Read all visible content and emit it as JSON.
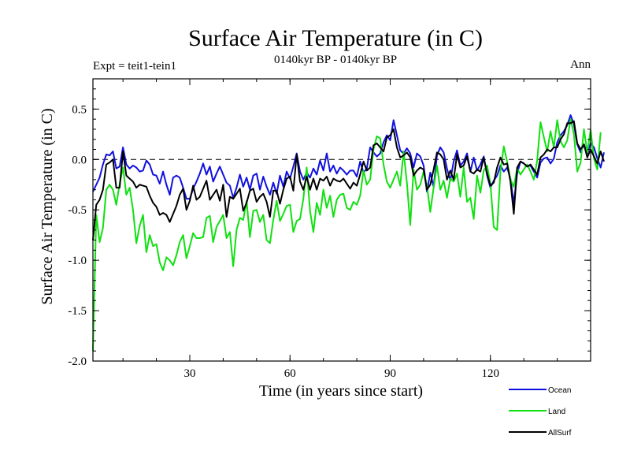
{
  "chart_data": {
    "type": "line",
    "title": "Surface Air Temperature (in C)",
    "subtitle": "0140kyr BP - 0140kyr BP",
    "left_label": "Expt = teit1-tein1",
    "right_label": "Ann",
    "xlabel": "Time (in years since start)",
    "ylabel": "Surface Air Temperature (in C)",
    "xlim": [
      1,
      150
    ],
    "ylim": [
      -2.0,
      0.8
    ],
    "xticks": [
      30,
      60,
      90,
      120
    ],
    "xtick_labels": [
      "30",
      "60",
      "90",
      "120"
    ],
    "yticks": [
      -2.0,
      -1.5,
      -1.0,
      -0.5,
      0.0,
      0.5
    ],
    "ytick_labels": [
      "-2.0",
      "-1.5",
      "-1.0",
      "-0.5",
      "0.0",
      "0.5"
    ],
    "reference_line": 0.0,
    "legend": "lower-right",
    "series": [
      {
        "name": "Ocean",
        "color": "#1010e0",
        "values": [
          -0.32,
          -0.25,
          -0.18,
          -0.05,
          0.05,
          0.04,
          0.08,
          -0.09,
          -0.07,
          0.12,
          -0.05,
          -0.09,
          -0.06,
          -0.08,
          -0.12,
          -0.11,
          -0.01,
          -0.05,
          -0.15,
          -0.16,
          -0.24,
          -0.12,
          -0.25,
          -0.35,
          -0.18,
          -0.16,
          -0.18,
          -0.28,
          -0.39,
          -0.39,
          -0.29,
          -0.22,
          -0.14,
          -0.04,
          -0.15,
          -0.07,
          -0.22,
          -0.14,
          -0.07,
          -0.15,
          -0.23,
          -0.26,
          -0.38,
          -0.28,
          -0.15,
          -0.27,
          -0.18,
          -0.3,
          -0.16,
          -0.14,
          -0.3,
          -0.17,
          -0.27,
          -0.35,
          -0.23,
          -0.34,
          -0.16,
          -0.27,
          -0.12,
          -0.19,
          -0.07,
          0.06,
          -0.12,
          -0.2,
          -0.13,
          -0.18,
          -0.09,
          -0.15,
          -0.01,
          -0.11,
          0.06,
          -0.12,
          -0.06,
          -0.14,
          -0.08,
          -0.11,
          -0.15,
          -0.11,
          -0.11,
          -0.17,
          -0.02,
          -0.13,
          -0.09,
          0.12,
          0.07,
          0.03,
          0.06,
          0.17,
          0.24,
          0.19,
          0.39,
          0.24,
          0.09,
          0.06,
          0.11,
          0.06,
          -0.08,
          0.06,
          0.03,
          -0.06,
          -0.32,
          -0.13,
          -0.27,
          0.04,
          0.12,
          0.07,
          -0.09,
          -0.21,
          -0.02,
          0.09,
          -0.06,
          -0.02,
          0.06,
          -0.12,
          0.02,
          -0.11,
          -0.05,
          0.03,
          -0.16,
          -0.28,
          -0.21,
          -0.16,
          -0.06,
          -0.12,
          -0.08,
          -0.19,
          -0.44,
          -0.14,
          -0.02,
          -0.04,
          -0.07,
          -0.06,
          -0.12,
          -0.18,
          -0.03,
          0.01,
          0.02,
          -0.04,
          0.01,
          0.17,
          0.24,
          0.28,
          0.34,
          0.44,
          0.35,
          0.15,
          0.07,
          0.15,
          0.06,
          0.16,
          0.12,
          0.01,
          -0.08,
          0.07
        ]
      },
      {
        "name": "Land",
        "color": "#10e010",
        "values": [
          -1.9,
          -0.55,
          -0.82,
          -0.68,
          -0.3,
          -0.25,
          -0.3,
          -0.45,
          -0.24,
          -0.08,
          -0.35,
          -0.28,
          -0.5,
          -0.83,
          -0.66,
          -0.55,
          -0.92,
          -0.75,
          -0.86,
          -0.84,
          -1.02,
          -1.1,
          -0.97,
          -1.0,
          -1.05,
          -0.95,
          -0.82,
          -0.75,
          -0.98,
          -0.86,
          -0.73,
          -0.78,
          -0.78,
          -0.77,
          -0.58,
          -0.56,
          -0.82,
          -0.67,
          -0.61,
          -0.55,
          -0.78,
          -0.72,
          -1.06,
          -0.7,
          -0.58,
          -0.6,
          -0.41,
          -0.77,
          -0.51,
          -0.5,
          -0.62,
          -0.55,
          -0.8,
          -0.83,
          -0.6,
          -0.41,
          -0.61,
          -0.54,
          -0.46,
          -0.45,
          -0.72,
          -0.61,
          -0.59,
          -0.39,
          -0.08,
          -0.51,
          -0.72,
          -0.43,
          -0.55,
          -0.3,
          -0.48,
          -0.36,
          -0.57,
          -0.4,
          -0.35,
          -0.34,
          -0.48,
          -0.5,
          -0.42,
          -0.45,
          -0.36,
          -0.11,
          -0.25,
          -0.2,
          0.1,
          0.23,
          0.21,
          -0.05,
          -0.22,
          -0.28,
          -0.2,
          -0.12,
          -0.26,
          0.08,
          -0.23,
          -0.65,
          -0.1,
          -0.3,
          -0.25,
          -0.12,
          -0.26,
          -0.52,
          -0.28,
          -0.06,
          -0.3,
          -0.21,
          -0.38,
          -0.19,
          -0.22,
          -0.14,
          -0.37,
          -0.08,
          -0.42,
          -0.38,
          -0.59,
          -0.16,
          -0.33,
          -0.11,
          -0.06,
          -0.24,
          -0.67,
          -0.7,
          -0.12,
          0.13,
          -0.02,
          -0.2,
          -0.27,
          -0.09,
          -0.15,
          -0.1,
          -0.05,
          -0.12,
          -0.2,
          -0.01,
          0.37,
          0.22,
          0.08,
          0.28,
          0.12,
          0.39,
          0.18,
          0.12,
          0.19,
          0.4,
          0.25,
          -0.12,
          -0.03,
          0.3,
          0.07,
          0.29,
          0.01,
          -0.1,
          0.27
        ]
      },
      {
        "name": "AllSurf",
        "color": "#000000",
        "values": [
          -0.8,
          -0.45,
          -0.4,
          -0.3,
          -0.05,
          -0.03,
          0.0,
          -0.28,
          -0.28,
          0.08,
          -0.16,
          -0.19,
          -0.22,
          -0.28,
          -0.25,
          -0.26,
          -0.27,
          -0.36,
          -0.43,
          -0.47,
          -0.55,
          -0.53,
          -0.55,
          -0.62,
          -0.54,
          -0.46,
          -0.35,
          -0.29,
          -0.5,
          -0.41,
          -0.26,
          -0.4,
          -0.37,
          -0.29,
          -0.21,
          -0.4,
          -0.35,
          -0.3,
          -0.41,
          -0.25,
          -0.57,
          -0.37,
          -0.39,
          -0.34,
          -0.29,
          -0.51,
          -0.43,
          -0.31,
          -0.29,
          -0.42,
          -0.37,
          -0.34,
          -0.42,
          -0.57,
          -0.31,
          -0.31,
          -0.44,
          -0.3,
          -0.19,
          -0.17,
          -0.31,
          0.05,
          -0.22,
          -0.3,
          -0.17,
          -0.3,
          -0.19,
          -0.3,
          -0.19,
          -0.21,
          -0.17,
          -0.26,
          -0.19,
          -0.21,
          -0.22,
          -0.19,
          -0.24,
          -0.29,
          -0.23,
          -0.26,
          -0.15,
          -0.02,
          -0.11,
          -0.08,
          0.14,
          0.16,
          0.12,
          0.08,
          0.22,
          0.24,
          0.3,
          0.12,
          0.02,
          0.04,
          0.07,
          0.02,
          -0.16,
          -0.11,
          -0.08,
          -0.1,
          -0.3,
          -0.25,
          -0.1,
          0.07,
          0.05,
          0.0,
          -0.2,
          -0.11,
          -0.2,
          0.05,
          -0.08,
          -0.06,
          0.03,
          -0.12,
          -0.14,
          -0.1,
          -0.12,
          0.02,
          -0.14,
          -0.26,
          -0.23,
          -0.08,
          0.02,
          -0.05,
          -0.04,
          -0.22,
          -0.54,
          -0.08,
          -0.02,
          -0.04,
          -0.07,
          -0.05,
          -0.1,
          -0.15,
          0.02,
          0.05,
          0.1,
          0.08,
          0.12,
          0.12,
          0.2,
          0.25,
          0.36,
          0.36,
          0.38,
          0.16,
          0.1,
          0.15,
          0.02,
          0.1,
          0.03,
          -0.04,
          0.08,
          -0.02
        ]
      }
    ]
  }
}
